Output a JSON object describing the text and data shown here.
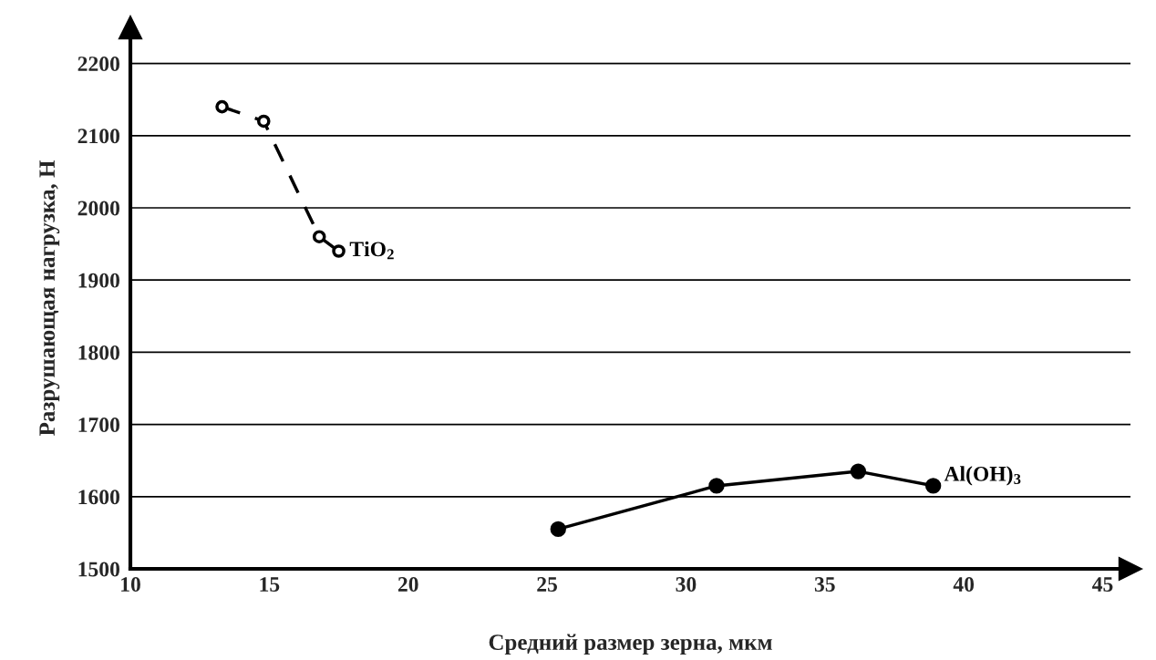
{
  "chart_data": {
    "type": "line",
    "xlabel": "Средний размер зерна, мкм",
    "ylabel": "Разрушающая нагрузка, Н",
    "xlim": [
      10,
      46
    ],
    "xticks": [
      10,
      15,
      20,
      25,
      30,
      35,
      40,
      45
    ],
    "ylim": [
      1500,
      2250
    ],
    "yticks": [
      1500,
      1600,
      1700,
      1800,
      1900,
      2000,
      2100,
      2200
    ],
    "grid": "y",
    "legend": false,
    "series": [
      {
        "name": "TiO$_{2}$",
        "color": "#000000",
        "marker": "circle",
        "line_style": "dashed",
        "x": [
          13.3,
          14.8,
          16.8,
          17.5
        ],
        "values": [
          2140,
          2120,
          1960,
          1940
        ]
      },
      {
        "name": "Al(OH)$_{3}$",
        "color": "#000000",
        "marker": "circle",
        "line_style": "solid",
        "x": [
          25.4,
          31.1,
          36.2,
          38.9
        ],
        "values": [
          1555,
          1615,
          1635,
          1615
        ]
      }
    ]
  }
}
